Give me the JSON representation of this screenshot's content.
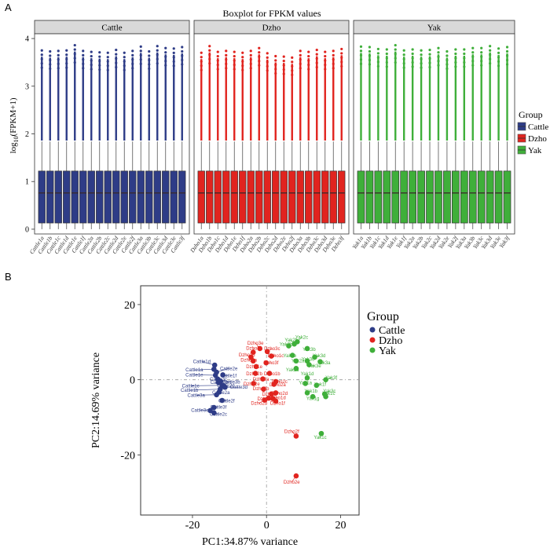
{
  "panel_labels": {
    "a": "A",
    "b": "B"
  },
  "colors": {
    "Cattle": "#2E3C87",
    "Dzho": "#E1241F",
    "Yak": "#3FAF3A"
  },
  "chart_data": [
    {
      "type": "boxplot",
      "title": "Boxplot for FPKM values",
      "ylabel_main": "log",
      "ylabel_sub": "10",
      "ylabel_tail": "(FPKM+1)",
      "ylim": [
        -0.1,
        4.1
      ],
      "yticks": [
        "0",
        "1",
        "2",
        "3",
        "4"
      ],
      "ytick_values": [
        0,
        1,
        2,
        3,
        4
      ],
      "facets": [
        {
          "name": "Cattle",
          "group": "Cattle",
          "samples": [
            "Cattle1a",
            "Cattle1b",
            "Cattle1c",
            "Cattle1d",
            "Cattle1e",
            "Cattle1f",
            "Cattle2a",
            "Cattle2b",
            "Cattle2c",
            "Cattle2d",
            "Cattle2e",
            "Cattle2f",
            "Cattle3a",
            "Cattle3b",
            "Cattle3c",
            "Cattle3d",
            "Cattle3e",
            "Cattle3f"
          ]
        },
        {
          "name": "Dzho",
          "group": "Dzho",
          "samples": [
            "Dzho1a",
            "Dzho1b",
            "Dzho1c",
            "Dzho1d",
            "Dzho1e",
            "Dzho1f",
            "Dzho2a",
            "Dzho2b",
            "Dzho2c",
            "Dzho2d",
            "Dzho2e",
            "Dzho2f",
            "Dzho3a",
            "Dzho3b",
            "Dzho3c",
            "Dzho3d",
            "Dzho3e",
            "Dzho3f"
          ]
        },
        {
          "name": "Yak",
          "group": "Yak",
          "samples": [
            "Yak1a",
            "Yak1b",
            "Yak1c",
            "Yak1d",
            "Yak1e",
            "Yak1f",
            "Yak2a",
            "Yak2b",
            "Yak2c",
            "Yak2d",
            "Yak2e",
            "Yak2f",
            "Yak3a",
            "Yak3b",
            "Yak3c",
            "Yak3d",
            "Yak3e",
            "Yak3f"
          ]
        }
      ],
      "box_stats": {
        "q1": 0.13,
        "median": 0.76,
        "q3": 1.22,
        "whisker_low": 0.0,
        "whisker_high": 1.84
      },
      "outlier_max": [
        3.75,
        3.73,
        3.74,
        3.75,
        3.86,
        3.74,
        3.72,
        3.71,
        3.7,
        3.76,
        3.7,
        3.74,
        3.83,
        3.73,
        3.84,
        3.8,
        3.79,
        3.82,
        3.7,
        3.84,
        3.72,
        3.74,
        3.72,
        3.7,
        3.74,
        3.8,
        3.69,
        3.63,
        3.62,
        3.6,
        3.74,
        3.72,
        3.76,
        3.72,
        3.74,
        3.78,
        3.83,
        3.82,
        3.78,
        3.77,
        3.86,
        3.75,
        3.77,
        3.75,
        3.76,
        3.8,
        3.73,
        3.77,
        3.77,
        3.8,
        3.8,
        3.84,
        3.79,
        3.82
      ],
      "legend": {
        "title": "Group",
        "entries": [
          "Cattle",
          "Dzho",
          "Yak"
        ],
        "position": "right"
      }
    },
    {
      "type": "scatter",
      "xlabel": "PC1:34.87% variance",
      "ylabel": "PC2:14.69% variance",
      "xlim": [
        -34,
        25
      ],
      "ylim": [
        -36,
        25
      ],
      "xticks": [
        "-20",
        "0",
        "20"
      ],
      "xtick_values": [
        -20,
        0,
        20
      ],
      "yticks": [
        "20",
        "0",
        "-20"
      ],
      "ytick_values": [
        20,
        0,
        -20
      ],
      "reference_lines": {
        "x": 0,
        "y": 0
      },
      "legend": {
        "title": "Group",
        "entries": [
          "Cattle",
          "Dzho",
          "Yak"
        ],
        "position": "right"
      },
      "points": [
        {
          "label": "Cattle1d",
          "group": "Cattle",
          "x": -14.0,
          "y": 3.9,
          "lx": -17.5,
          "ly": 4.8
        },
        {
          "label": "Cattle1a",
          "group": "Cattle",
          "x": -14.2,
          "y": 2.8,
          "lx": -19.5,
          "ly": 2.6
        },
        {
          "label": "Cattle2e",
          "group": "Cattle",
          "x": -13.5,
          "y": 2.0,
          "lx": -10.2,
          "ly": 3.0
        },
        {
          "label": "Cattle1e",
          "group": "Cattle",
          "x": -13.8,
          "y": 1.2,
          "lx": -19.5,
          "ly": 1.3
        },
        {
          "label": "Cattle3c",
          "group": "Cattle",
          "x": -13.2,
          "y": 0.2,
          "lx": -13.0,
          "ly": 0.1
        },
        {
          "label": "Cattle2b",
          "group": "Cattle",
          "x": -13.0,
          "y": -0.7,
          "lx": -12.8,
          "ly": -0.7
        },
        {
          "label": "Cattle3b",
          "group": "Cattle",
          "x": -12.4,
          "y": -0.4,
          "lx": -9.5,
          "ly": -0.6
        },
        {
          "label": "Cattle1f",
          "group": "Cattle",
          "x": -11.8,
          "y": 1.3,
          "lx": -10.3,
          "ly": 1.1
        },
        {
          "label": "Cattle1c",
          "group": "Cattle",
          "x": -12.0,
          "y": -1.5,
          "lx": -20.5,
          "ly": -1.6
        },
        {
          "label": "Cattle1b",
          "group": "Cattle",
          "x": -12.5,
          "y": -2.5,
          "lx": -20.8,
          "ly": -2.8
        },
        {
          "label": "Cattle2d",
          "group": "Cattle",
          "x": -11.5,
          "y": -1.7,
          "lx": -11.0,
          "ly": -1.5
        },
        {
          "label": "Cattle3d",
          "group": "Cattle",
          "x": -11.2,
          "y": -2.0,
          "lx": -7.5,
          "ly": -2.0
        },
        {
          "label": "Cattle2a",
          "group": "Cattle",
          "x": -12.8,
          "y": -3.3,
          "lx": -12.3,
          "ly": -3.4
        },
        {
          "label": "Cattle3a",
          "group": "Cattle",
          "x": -13.5,
          "y": -4.0,
          "lx": -19.0,
          "ly": -4.1
        },
        {
          "label": "Cattle2f",
          "group": "Cattle",
          "x": -12.0,
          "y": -5.5,
          "lx": -10.8,
          "ly": -5.6
        },
        {
          "label": "Cattle3f",
          "group": "Cattle",
          "x": -14.2,
          "y": -7.4,
          "lx": -13.0,
          "ly": -7.3
        },
        {
          "label": "Cattle3e",
          "group": "Cattle",
          "x": -15.2,
          "y": -8.2,
          "lx": -18.0,
          "ly": -8.1
        },
        {
          "label": "Cattle2c",
          "group": "Cattle",
          "x": -14.2,
          "y": -8.8,
          "lx": -13.0,
          "ly": -9.2
        },
        {
          "label": "Dzho3e",
          "group": "Dzho",
          "x": -1.8,
          "y": 8.3,
          "lx": -3.0,
          "ly": 9.8
        },
        {
          "label": "Dzho3f",
          "group": "Dzho",
          "x": -3.6,
          "y": 7.3,
          "lx": -3.5,
          "ly": 8.4
        },
        {
          "label": "Dzho3c",
          "group": "Dzho",
          "x": 0.2,
          "y": 7.5,
          "lx": 1.5,
          "ly": 8.3
        },
        {
          "label": "Dzho3d",
          "group": "Dzho",
          "x": -4.2,
          "y": 6.0,
          "lx": -5.3,
          "ly": 6.6
        },
        {
          "label": "Dzho1c",
          "group": "Dzho",
          "x": 1.3,
          "y": 6.3,
          "lx": 2.5,
          "ly": 6.4
        },
        {
          "label": "Dzho3a",
          "group": "Dzho",
          "x": -3.6,
          "y": 5.0,
          "lx": -4.8,
          "ly": 5.3
        },
        {
          "label": "Dzho3f",
          "group": "Dzho",
          "x": -0.1,
          "y": 4.5,
          "lx": 1.2,
          "ly": 4.5
        },
        {
          "label": "Dzho1e",
          "group": "Dzho",
          "x": -2.8,
          "y": 3.5,
          "lx": -3.3,
          "ly": 3.5
        },
        {
          "label": "Dzho2b",
          "group": "Dzho",
          "x": -3.0,
          "y": 1.7,
          "lx": -3.3,
          "ly": 1.6
        },
        {
          "label": "Dzho1b",
          "group": "Dzho",
          "x": 0.8,
          "y": 1.7,
          "lx": 1.5,
          "ly": 1.6
        },
        {
          "label": "Dzho3a",
          "group": "Dzho",
          "x": -1.0,
          "y": 0.2,
          "lx": -1.5,
          "ly": 0.1
        },
        {
          "label": "Dzho2c",
          "group": "Dzho",
          "x": 2.5,
          "y": -0.5,
          "lx": 3.5,
          "ly": -0.5
        },
        {
          "label": "Dzho2e",
          "group": "Dzho",
          "x": -3.5,
          "y": -1.0,
          "lx": -4.0,
          "ly": -1.1
        },
        {
          "label": "Dzho2a",
          "group": "Dzho",
          "x": 2.0,
          "y": -1.2,
          "lx": 3.0,
          "ly": -1.3
        },
        {
          "label": "Dzho2b",
          "group": "Dzho",
          "x": -0.8,
          "y": -2.5,
          "lx": -1.5,
          "ly": -2.4
        },
        {
          "label": "Dzho2d",
          "group": "Dzho",
          "x": 2.5,
          "y": -3.5,
          "lx": 3.5,
          "ly": -3.6
        },
        {
          "label": "Dzho1f",
          "group": "Dzho",
          "x": 1.3,
          "y": -3.8,
          "lx": 0.8,
          "ly": -3.8
        },
        {
          "label": "Dzho1a",
          "group": "Dzho",
          "x": 0.5,
          "y": -4.9,
          "lx": -0.3,
          "ly": -5.1
        },
        {
          "label": "Dzho1d",
          "group": "Dzho",
          "x": 1.7,
          "y": -5.0,
          "lx": 3.0,
          "ly": -4.8
        },
        {
          "label": "Dzho2d",
          "group": "Dzho",
          "x": -0.5,
          "y": -5.4,
          "lx": -2.0,
          "ly": -6.2
        },
        {
          "label": "Dzho1f",
          "group": "Dzho",
          "x": 2.5,
          "y": -5.7,
          "lx": 3.0,
          "ly": -6.2
        },
        {
          "label": "Dzho2f",
          "group": "Dzho",
          "x": 8.0,
          "y": -15.0,
          "lx": 6.8,
          "ly": -13.7
        },
        {
          "label": "Dzho2e",
          "group": "Dzho",
          "x": 8.0,
          "y": -25.6,
          "lx": 6.8,
          "ly": -27.2
        },
        {
          "label": "Yak2c",
          "group": "Yak",
          "x": 8.3,
          "y": 10.1,
          "lx": 9.5,
          "ly": 11.3
        },
        {
          "label": "Yak2f",
          "group": "Yak",
          "x": 7.5,
          "y": 9.5,
          "lx": 6.5,
          "ly": 10.6
        },
        {
          "label": "Yak2b",
          "group": "Yak",
          "x": 6.0,
          "y": 9.0,
          "lx": 5.3,
          "ly": 9.4
        },
        {
          "label": "Yak3b",
          "group": "Yak",
          "x": 11.0,
          "y": 8.3,
          "lx": 11.5,
          "ly": 8.1
        },
        {
          "label": "Yak3d",
          "group": "Yak",
          "x": 13.0,
          "y": 6.0,
          "lx": 14.2,
          "ly": 6.4
        },
        {
          "label": "Yak2e",
          "group": "Yak",
          "x": 7.0,
          "y": 6.5,
          "lx": 6.3,
          "ly": 6.4
        },
        {
          "label": "Yak3c",
          "group": "Yak",
          "x": 11.0,
          "y": 5.0,
          "lx": 11.2,
          "ly": 5.5
        },
        {
          "label": "Yak3a",
          "group": "Yak",
          "x": 14.5,
          "y": 4.8,
          "lx": 15.5,
          "ly": 4.5
        },
        {
          "label": "Yak2a",
          "group": "Yak",
          "x": 8.0,
          "y": 5.0,
          "lx": 8.5,
          "ly": 5.0
        },
        {
          "label": "Yak3e",
          "group": "Yak",
          "x": 11.5,
          "y": 4.0,
          "lx": 13.0,
          "ly": 3.7
        },
        {
          "label": "Yak2d",
          "group": "Yak",
          "x": 8.0,
          "y": 3.0,
          "lx": 7.0,
          "ly": 2.6
        },
        {
          "label": "Yak1d",
          "group": "Yak",
          "x": 11.0,
          "y": 0.5,
          "lx": 11.0,
          "ly": 1.6
        },
        {
          "label": "Yak3f",
          "group": "Yak",
          "x": 16.0,
          "y": 0.0,
          "lx": 17.5,
          "ly": 0.6
        },
        {
          "label": "Yak1a",
          "group": "Yak",
          "x": 10.5,
          "y": -1.0,
          "lx": 10.5,
          "ly": -0.8
        },
        {
          "label": "Yak1f",
          "group": "Yak",
          "x": 13.5,
          "y": -1.5,
          "lx": 14.5,
          "ly": -1.2
        },
        {
          "label": "Yak1b",
          "group": "Yak",
          "x": 11.0,
          "y": -3.5,
          "lx": 12.0,
          "ly": -3.0
        },
        {
          "label": "Yak3c",
          "group": "Yak",
          "x": 15.7,
          "y": -3.8,
          "lx": 17.0,
          "ly": -3.0
        },
        {
          "label": "Yak1c",
          "group": "Yak",
          "x": 16.0,
          "y": -4.5,
          "lx": 16.8,
          "ly": -3.6
        },
        {
          "label": "Yak1g",
          "group": "Yak",
          "x": 12.5,
          "y": -4.5,
          "lx": 12.5,
          "ly": -5.0
        },
        {
          "label": "Yak1c",
          "group": "Yak",
          "x": 14.8,
          "y": -14.3,
          "lx": 14.5,
          "ly": -15.3
        }
      ]
    }
  ]
}
